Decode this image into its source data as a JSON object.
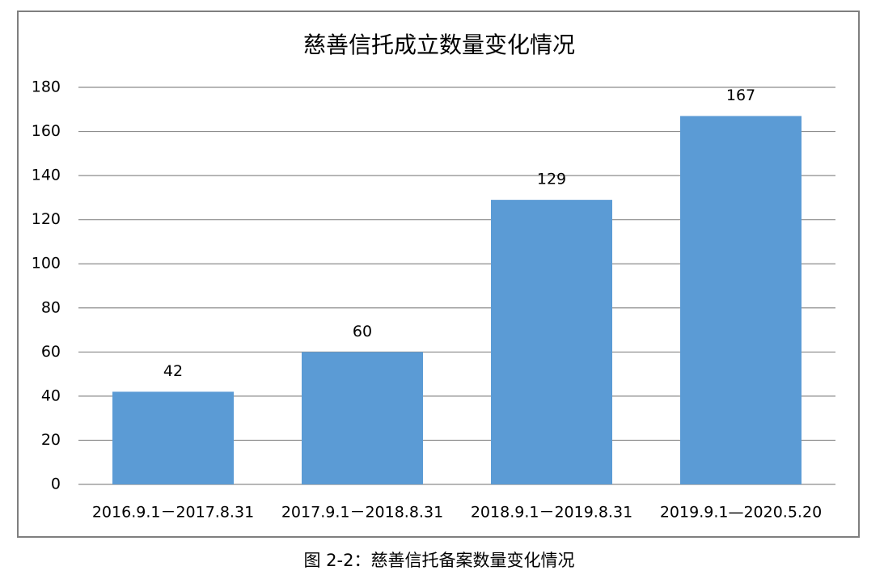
{
  "chart_data": {
    "type": "bar",
    "title": "慈善信托成立数量变化情况",
    "categories": [
      "2016.9.1－2017.8.31",
      "2017.9.1－2018.8.31",
      "2018.9.1－2019.8.31",
      "2019.9.1—2020.5.20"
    ],
    "values": [
      42,
      60,
      129,
      167
    ],
    "color": "#5b9bd5",
    "ylim": [
      0,
      180
    ],
    "yticks": [
      0,
      20,
      40,
      60,
      80,
      100,
      120,
      140,
      160,
      180
    ],
    "grid": true
  },
  "caption": "图 2-2：慈善信托备案数量变化情况"
}
